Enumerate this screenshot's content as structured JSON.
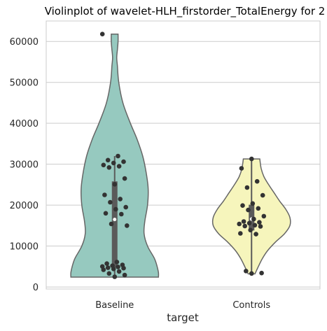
{
  "chart_data": {
    "type": "violin",
    "title": "Violinplot of wavelet-HLH_firstorder_TotalEnergy for 2",
    "xlabel": "target",
    "ylabel": "",
    "categories": [
      "Baseline",
      "Controls"
    ],
    "ylim": [
      -500,
      65000
    ],
    "yticks": [
      0,
      10000,
      20000,
      30000,
      40000,
      50000,
      60000
    ],
    "grid": "horizontal",
    "colors": {
      "Baseline": "#96c9bf",
      "Controls": "#f6f5bc",
      "outline": "#666666",
      "points": "#333333",
      "grid": "#cccccc",
      "box": "#5a5a5a"
    },
    "series": [
      {
        "name": "Baseline",
        "points": [
          61800,
          32000,
          31000,
          30600,
          30300,
          29800,
          29500,
          29200,
          26500,
          25100,
          22500,
          21500,
          20700,
          19500,
          19000,
          18000,
          17800,
          15400,
          15000,
          6100,
          5700,
          5400,
          5200,
          5000,
          4900,
          4700,
          4600,
          4400,
          4200,
          3800,
          3300,
          2900,
          2500
        ],
        "violin": {
          "y": [
            2400,
            3500,
            5000,
            7000,
            10000,
            13000,
            16000,
            20000,
            24000,
            28000,
            32000,
            36000,
            40000,
            45000,
            50000,
            54000,
            56000,
            58000,
            60000,
            61800
          ],
          "halfwidth": [
            0.32,
            0.32,
            0.31,
            0.29,
            0.24,
            0.215,
            0.22,
            0.24,
            0.245,
            0.23,
            0.205,
            0.165,
            0.115,
            0.06,
            0.03,
            0.02,
            0.015,
            0.02,
            0.025,
            0.025
          ]
        },
        "box": {
          "q1": 4800,
          "median": 16500,
          "q3": 25800,
          "whisker_low": 2500,
          "whisker_high": 32000
        }
      },
      {
        "name": "Controls",
        "points": [
          31300,
          29000,
          25800,
          24300,
          22400,
          20400,
          19900,
          19200,
          18800,
          17300,
          16600,
          16000,
          15800,
          15600,
          15400,
          15100,
          14900,
          14800,
          13900,
          13100,
          12900,
          3900,
          3400,
          3300
        ],
        "violin": {
          "y": [
            3200,
            5000,
            7000,
            9000,
            11000,
            13000,
            15000,
            17000,
            19000,
            21000,
            23000,
            25000,
            27000,
            29000,
            31300
          ],
          "halfwidth": [
            0.025,
            0.05,
            0.08,
            0.12,
            0.175,
            0.24,
            0.28,
            0.28,
            0.25,
            0.205,
            0.165,
            0.125,
            0.09,
            0.07,
            0.06
          ]
        },
        "box": {
          "q1": 13800,
          "median": 16600,
          "q3": 20100,
          "whisker_low": 3300,
          "whisker_high": 31300
        }
      }
    ]
  }
}
